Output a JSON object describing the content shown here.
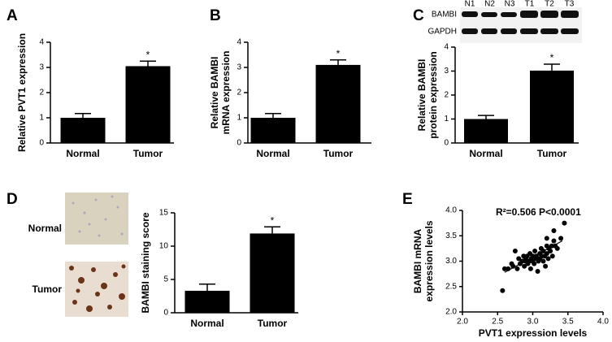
{
  "chart_data": [
    {
      "type": "bar",
      "label": "A",
      "ylabel": [
        "Relative PVT1 expression"
      ],
      "categories": [
        "Normal",
        "Tumor"
      ],
      "values": [
        1.0,
        3.05
      ],
      "errors": [
        0.17,
        0.2
      ],
      "annotation": "*",
      "ylim": [
        0,
        4
      ],
      "yticks": [
        0,
        1,
        2,
        3,
        4
      ],
      "color": "#000000"
    },
    {
      "type": "bar",
      "label": "B",
      "ylabel": [
        "Relative BAMBI",
        "mRNA expression"
      ],
      "categories": [
        "Normal",
        "Tumor"
      ],
      "values": [
        1.0,
        3.1
      ],
      "errors": [
        0.17,
        0.2
      ],
      "annotation": "*",
      "ylim": [
        0,
        4
      ],
      "yticks": [
        0,
        1,
        2,
        3,
        4
      ],
      "color": "#000000"
    },
    {
      "type": "bar",
      "label": "C",
      "ylabel": [
        "Relative BAMBI",
        "protein expression"
      ],
      "categories": [
        "Normal",
        "Tumor"
      ],
      "values": [
        1.0,
        3.02
      ],
      "errors": [
        0.15,
        0.27
      ],
      "annotation": "*",
      "ylim": [
        0,
        4
      ],
      "yticks": [
        0,
        1,
        2,
        3,
        4
      ],
      "color": "#000000",
      "blot": {
        "lanes": [
          "N1",
          "N2",
          "N3",
          "T1",
          "T2",
          "T3"
        ],
        "rows": [
          "BAMBI",
          "GAPDH"
        ]
      }
    },
    {
      "type": "bar",
      "label": "D",
      "ylabel": [
        "BAMBI staining score"
      ],
      "categories": [
        "Normal",
        "Tumor"
      ],
      "values": [
        3.3,
        11.9
      ],
      "errors": [
        1.0,
        1.0
      ],
      "annotation": "*",
      "ylim": [
        0,
        15
      ],
      "yticks": [
        0,
        5,
        10,
        15
      ],
      "color": "#000000",
      "images": [
        "Normal",
        "Tumor"
      ]
    },
    {
      "type": "scatter",
      "label": "E",
      "ylabel": [
        "BAMBI mRNA",
        "expression levels"
      ],
      "xlabel": "PVT1 expression levels",
      "annotation": "R²=0.506  P<0.0001",
      "color": "#000000",
      "xlim": [
        2,
        4
      ],
      "ylim": [
        2,
        4
      ],
      "xticks": [
        {
          "value": 2,
          "label": "2.0"
        },
        {
          "value": 2.5,
          "label": "2.5"
        },
        {
          "value": 3,
          "label": "3.0"
        },
        {
          "value": 3.5,
          "label": "3.5"
        },
        {
          "value": 4,
          "label": "4.0"
        }
      ],
      "yticks": [
        {
          "value": 2,
          "label": "2.0"
        },
        {
          "value": 2.5,
          "label": "2.5"
        },
        {
          "value": 3,
          "label": "3.0"
        },
        {
          "value": 3.5,
          "label": "3.5"
        },
        {
          "value": 4,
          "label": "4.0"
        }
      ],
      "x": [
        2.57,
        2.6,
        2.65,
        2.7,
        2.72,
        2.75,
        2.78,
        2.8,
        2.82,
        2.85,
        2.87,
        2.88,
        2.9,
        2.9,
        2.92,
        2.93,
        2.95,
        2.96,
        2.97,
        2.98,
        3.0,
        3.0,
        3.02,
        3.03,
        3.05,
        3.05,
        3.07,
        3.08,
        3.1,
        3.1,
        3.12,
        3.13,
        3.15,
        3.15,
        3.17,
        3.18,
        3.2,
        3.2,
        3.22,
        3.23,
        3.25,
        3.27,
        3.28,
        3.3,
        3.3,
        3.32,
        3.35,
        3.4,
        3.45,
        3.2
      ],
      "y": [
        2.42,
        2.85,
        2.85,
        2.95,
        2.9,
        3.2,
        2.85,
        3.05,
        2.95,
        3.0,
        3.1,
        2.9,
        3.05,
        3.0,
        3.1,
        2.95,
        3.0,
        3.15,
        2.85,
        3.05,
        3.0,
        3.1,
        2.95,
        3.2,
        3.05,
        3.1,
        2.8,
        3.0,
        3.15,
        3.05,
        3.25,
        3.1,
        3.0,
        3.2,
        3.1,
        2.9,
        3.3,
        3.15,
        3.05,
        3.25,
        3.2,
        3.3,
        3.1,
        3.4,
        3.6,
        3.3,
        3.25,
        3.45,
        3.75,
        3.45
      ],
      "trendline": {
        "x": [
          2.6,
          3.42
        ],
        "y": [
          2.78,
          3.4
        ]
      }
    }
  ]
}
